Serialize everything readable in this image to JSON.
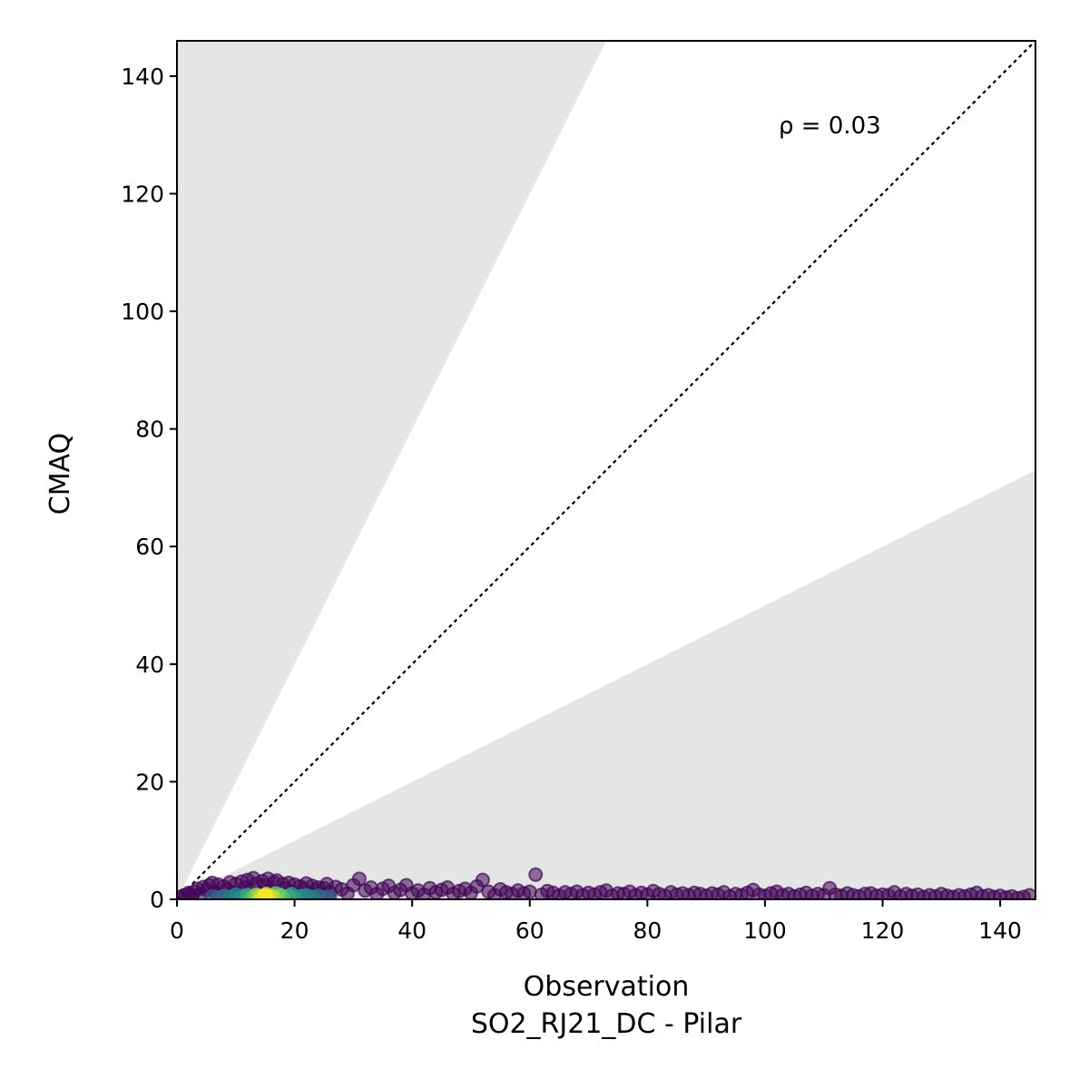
{
  "chart_data": {
    "type": "scatter",
    "title": "",
    "xlabel": "Observation",
    "xlabel_sub": "SO2_RJ21_DC - Pilar",
    "ylabel": "CMAQ",
    "xlim": [
      0,
      146
    ],
    "ylim": [
      0,
      146
    ],
    "xticks": [
      0,
      20,
      40,
      60,
      80,
      100,
      120,
      140
    ],
    "yticks": [
      0,
      20,
      40,
      60,
      80,
      100,
      120,
      140
    ],
    "grid": false,
    "annotation": "ρ = 0.03",
    "reference_line": {
      "slope": 1,
      "style": "dotted",
      "color": "#000000"
    },
    "shaded_regions": [
      {
        "upper_slope": 2,
        "color": "#e5e5e5"
      },
      {
        "lower_slope": 0.5,
        "color": "#e5e5e5"
      }
    ],
    "colormap": "viridis",
    "points": [
      [
        0.5,
        0.3
      ],
      [
        1,
        0.6
      ],
      [
        1.5,
        0.8
      ],
      [
        2,
        1.1
      ],
      [
        2.5,
        0.5
      ],
      [
        3,
        1.3
      ],
      [
        3.5,
        1.8
      ],
      [
        4,
        0.9
      ],
      [
        4.5,
        2.1
      ],
      [
        5,
        1.6
      ],
      [
        5.5,
        2.4
      ],
      [
        6,
        2.8
      ],
      [
        6.5,
        1.2
      ],
      [
        7,
        2.5
      ],
      [
        7.5,
        0.8
      ],
      [
        8,
        2.2
      ],
      [
        8.5,
        1.7
      ],
      [
        9,
        2.9
      ],
      [
        9.5,
        1.1
      ],
      [
        10,
        2.6
      ],
      [
        10.5,
        0.6
      ],
      [
        11,
        3.0
      ],
      [
        11.5,
        2.0
      ],
      [
        12,
        3.3
      ],
      [
        12.5,
        1.4
      ],
      [
        13,
        3.6
      ],
      [
        13.5,
        2.7
      ],
      [
        14,
        1.0
      ],
      [
        14.5,
        3.1
      ],
      [
        15,
        2.4
      ],
      [
        15.5,
        3.5
      ],
      [
        16,
        1.6
      ],
      [
        16.5,
        2.9
      ],
      [
        17,
        3.2
      ],
      [
        17.5,
        0.9
      ],
      [
        18,
        2.6
      ],
      [
        18.5,
        1.9
      ],
      [
        19,
        2.8
      ],
      [
        19.5,
        1.3
      ],
      [
        20,
        2.5
      ],
      [
        20.5,
        0.7
      ],
      [
        21,
        2.2
      ],
      [
        21.5,
        1.8
      ],
      [
        22,
        2.7
      ],
      [
        22.5,
        1.0
      ],
      [
        23,
        2.3
      ],
      [
        23.5,
        1.5
      ],
      [
        24,
        2.0
      ],
      [
        24.5,
        0.8
      ],
      [
        25,
        1.9
      ],
      [
        25.5,
        2.6
      ],
      [
        26,
        1.2
      ],
      [
        27,
        2.1
      ],
      [
        28,
        1.7
      ],
      [
        29,
        1.0
      ],
      [
        30,
        2.4
      ],
      [
        31,
        3.5
      ],
      [
        32,
        1.5
      ],
      [
        33,
        2.0
      ],
      [
        34,
        0.9
      ],
      [
        35,
        1.8
      ],
      [
        36,
        2.3
      ],
      [
        37,
        1.1
      ],
      [
        38,
        1.6
      ],
      [
        39,
        2.4
      ],
      [
        40,
        1.0
      ],
      [
        41,
        1.5
      ],
      [
        42,
        0.8
      ],
      [
        43,
        1.9
      ],
      [
        44,
        1.2
      ],
      [
        45,
        1.6
      ],
      [
        46,
        2.0
      ],
      [
        47,
        0.9
      ],
      [
        48,
        1.4
      ],
      [
        49,
        1.8
      ],
      [
        50,
        1.1
      ],
      [
        51,
        2.2
      ],
      [
        52,
        3.3
      ],
      [
        53,
        1.3
      ],
      [
        54,
        0.7
      ],
      [
        55,
        1.7
      ],
      [
        56,
        1.2
      ],
      [
        57,
        0.9
      ],
      [
        58,
        1.5
      ],
      [
        59,
        1.0
      ],
      [
        60,
        1.3
      ],
      [
        61,
        4.2
      ],
      [
        62,
        0.8
      ],
      [
        63,
        1.4
      ],
      [
        64,
        1.1
      ],
      [
        65,
        0.6
      ],
      [
        66,
        1.2
      ],
      [
        67,
        0.9
      ],
      [
        68,
        1.3
      ],
      [
        69,
        0.7
      ],
      [
        70,
        1.1
      ],
      [
        71,
        0.8
      ],
      [
        72,
        1.2
      ],
      [
        73,
        1.5
      ],
      [
        74,
        0.6
      ],
      [
        75,
        1.0
      ],
      [
        76,
        0.9
      ],
      [
        77,
        1.3
      ],
      [
        78,
        0.7
      ],
      [
        79,
        1.1
      ],
      [
        80,
        0.8
      ],
      [
        81,
        1.4
      ],
      [
        82,
        0.9
      ],
      [
        83,
        0.6
      ],
      [
        84,
        1.2
      ],
      [
        85,
        0.8
      ],
      [
        86,
        1.0
      ],
      [
        87,
        0.7
      ],
      [
        88,
        1.1
      ],
      [
        89,
        0.9
      ],
      [
        90,
        0.6
      ],
      [
        91,
        1.0
      ],
      [
        92,
        0.8
      ],
      [
        93,
        1.2
      ],
      [
        94,
        0.5
      ],
      [
        95,
        0.9
      ],
      [
        96,
        0.7
      ],
      [
        97,
        1.1
      ],
      [
        98,
        1.6
      ],
      [
        99,
        0.8
      ],
      [
        100,
        0.6
      ],
      [
        101,
        1.0
      ],
      [
        102,
        1.3
      ],
      [
        103,
        0.7
      ],
      [
        104,
        0.9
      ],
      [
        105,
        0.5
      ],
      [
        106,
        0.8
      ],
      [
        107,
        1.1
      ],
      [
        108,
        0.6
      ],
      [
        109,
        0.9
      ],
      [
        110,
        0.7
      ],
      [
        111,
        1.9
      ],
      [
        112,
        0.8
      ],
      [
        113,
        0.6
      ],
      [
        114,
        1.0
      ],
      [
        115,
        0.7
      ],
      [
        116,
        0.5
      ],
      [
        117,
        0.9
      ],
      [
        118,
        1.0
      ],
      [
        119,
        0.6
      ],
      [
        120,
        0.8
      ],
      [
        121,
        0.7
      ],
      [
        122,
        1.2
      ],
      [
        123,
        0.5
      ],
      [
        124,
        0.9
      ],
      [
        125,
        0.6
      ],
      [
        126,
        0.8
      ],
      [
        127,
        0.4
      ],
      [
        128,
        0.7
      ],
      [
        129,
        0.5
      ],
      [
        130,
        0.9
      ],
      [
        131,
        0.6
      ],
      [
        132,
        0.4
      ],
      [
        133,
        0.7
      ],
      [
        134,
        0.5
      ],
      [
        135,
        0.8
      ],
      [
        136,
        1.1
      ],
      [
        137,
        0.5
      ],
      [
        138,
        0.7
      ],
      [
        139,
        0.4
      ],
      [
        140,
        0.6
      ],
      [
        141,
        0.3
      ],
      [
        142,
        0.5
      ],
      [
        143,
        0.2
      ],
      [
        144,
        0.4
      ],
      [
        145,
        0.7
      ]
    ],
    "dense_points": [
      [
        8,
        0.6,
        0.35
      ],
      [
        9,
        0.4,
        0.4
      ],
      [
        10,
        0.8,
        0.45
      ],
      [
        11,
        0.5,
        0.5
      ],
      [
        12,
        0.7,
        0.6
      ],
      [
        13,
        0.4,
        0.7
      ],
      [
        13.5,
        0.8,
        0.8
      ],
      [
        14,
        0.5,
        0.9
      ],
      [
        14.5,
        0.3,
        0.95
      ],
      [
        15,
        0.7,
        1.0
      ],
      [
        15.5,
        0.4,
        0.95
      ],
      [
        16,
        0.6,
        0.9
      ],
      [
        16.5,
        0.3,
        0.85
      ],
      [
        17,
        0.5,
        0.8
      ],
      [
        17.5,
        0.8,
        0.75
      ],
      [
        18,
        0.4,
        0.7
      ],
      [
        19,
        0.6,
        0.6
      ],
      [
        20,
        0.3,
        0.55
      ],
      [
        21,
        0.5,
        0.5
      ],
      [
        22,
        0.7,
        0.45
      ],
      [
        23,
        0.4,
        0.4
      ],
      [
        24,
        0.6,
        0.35
      ],
      [
        25,
        0.3,
        0.3
      ],
      [
        26,
        0.5,
        0.25
      ],
      [
        7,
        0.3,
        0.3
      ],
      [
        6,
        0.5,
        0.25
      ],
      [
        12.5,
        0.2,
        0.65
      ],
      [
        15.2,
        0.9,
        0.85
      ],
      [
        16.8,
        1.0,
        0.7
      ],
      [
        19.5,
        0.9,
        0.5
      ]
    ]
  }
}
